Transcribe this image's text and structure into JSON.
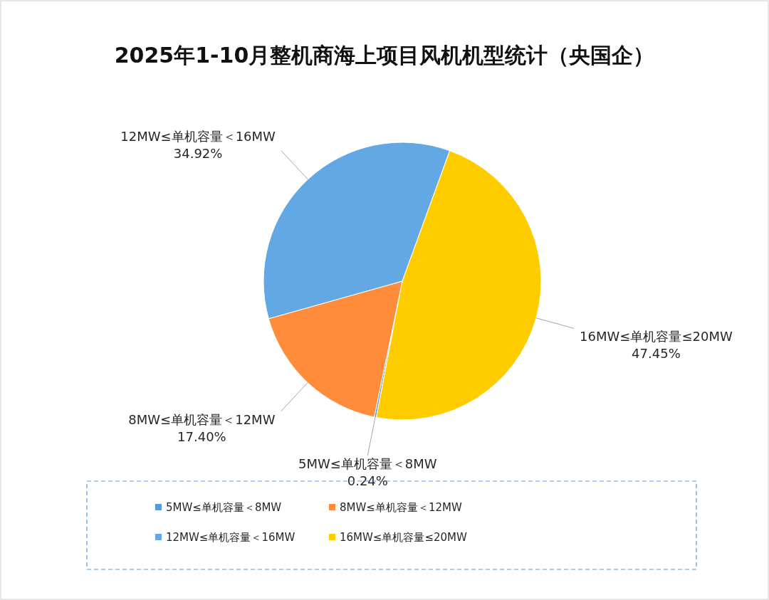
{
  "chart_data": {
    "type": "pie",
    "title": "2025年1-10月整机商海上项目风机机型统计（央国企）",
    "categories": [
      "5MW≤单机容量＜8MW",
      "8MW≤单机容量＜12MW",
      "12MW≤单机容量＜16MW",
      "16MW≤单机容量≤20MW"
    ],
    "values": [
      0.24,
      17.4,
      34.92,
      47.45
    ],
    "colors": [
      "#5b9bd5",
      "#ff8c3a",
      "#62a8e4",
      "#ffcc00"
    ],
    "value_labels": [
      "0.24%",
      "17.40%",
      "34.92%",
      "47.45%"
    ],
    "legend": "bottom"
  }
}
